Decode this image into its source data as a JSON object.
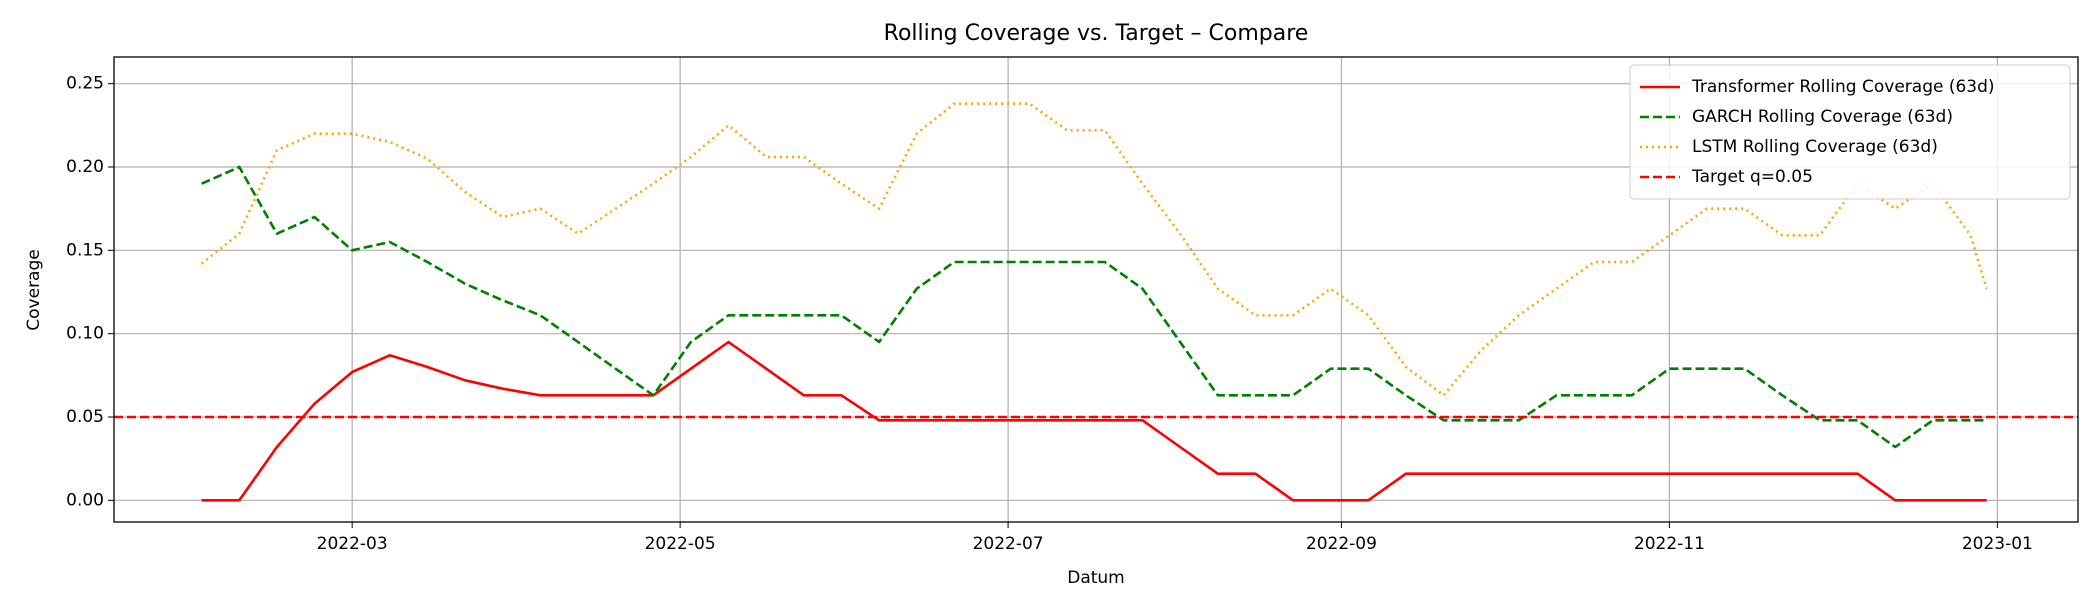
{
  "chart_data": {
    "type": "line",
    "title": "Rolling Coverage vs. Target – Compare",
    "x_label": "Datum",
    "y_label": "Coverage",
    "x": [
      32,
      39,
      46,
      53,
      60,
      67,
      74,
      81,
      88,
      95,
      102,
      109,
      116,
      123,
      130,
      137,
      144,
      151,
      158,
      165,
      172,
      179,
      186,
      193,
      200,
      207,
      214,
      221,
      228,
      235,
      242,
      249,
      256,
      263,
      270,
      277,
      284,
      291,
      298,
      305,
      312,
      319,
      326,
      333,
      340,
      347,
      354,
      361,
      364
    ],
    "xlim": [
      15.7,
      381
    ],
    "xticks": [
      {
        "value": 60,
        "label": "2022-03"
      },
      {
        "value": 121,
        "label": "2022-05"
      },
      {
        "value": 182,
        "label": "2022-07"
      },
      {
        "value": 244,
        "label": "2022-09"
      },
      {
        "value": 305,
        "label": "2022-11"
      },
      {
        "value": 366,
        "label": "2023-01"
      }
    ],
    "ylim": [
      -0.013,
      0.266
    ],
    "yticks": [
      {
        "value": 0,
        "label": "0.00"
      },
      {
        "value": 0.05,
        "label": "0.05"
      },
      {
        "value": 0.1,
        "label": "0.10"
      },
      {
        "value": 0.15,
        "label": "0.15"
      },
      {
        "value": 0.2,
        "label": "0.20"
      },
      {
        "value": 0.25,
        "label": "0.25"
      }
    ],
    "grid": true,
    "legend": "upper right",
    "series": [
      {
        "name": "Transformer Rolling Coverage (63d)",
        "color": "#ff0000",
        "style": "solid",
        "values": [
          0,
          0,
          0.032,
          0.058,
          0.077,
          0.087,
          0.08,
          0.072,
          0.067,
          0.063,
          0.063,
          0.063,
          0.063,
          0.079,
          0.095,
          0.079,
          0.063,
          0.063,
          0.048,
          0.048,
          0.048,
          0.048,
          0.048,
          0.048,
          0.048,
          0.048,
          0.032,
          0.016,
          0.016,
          0,
          0,
          0,
          0.016,
          0.016,
          0.016,
          0.016,
          0.016,
          0.016,
          0.016,
          0.016,
          0.016,
          0.016,
          0.016,
          0.016,
          0.016,
          0,
          0,
          0,
          0
        ]
      },
      {
        "name": "GARCH Rolling Coverage (63d)",
        "color": "#008000",
        "style": "dashed",
        "values": [
          0.19,
          0.2,
          0.16,
          0.17,
          0.15,
          0.155,
          0.143,
          0.13,
          0.12,
          0.111,
          0.095,
          0.079,
          0.063,
          0.095,
          0.111,
          0.111,
          0.111,
          0.111,
          0.095,
          0.127,
          0.143,
          0.143,
          0.143,
          0.143,
          0.143,
          0.127,
          0.095,
          0.063,
          0.063,
          0.063,
          0.079,
          0.079,
          0.063,
          0.048,
          0.048,
          0.048,
          0.063,
          0.063,
          0.063,
          0.079,
          0.079,
          0.079,
          0.063,
          0.048,
          0.048,
          0.032,
          0.048,
          0.048,
          0.048
        ]
      },
      {
        "name": "LSTM Rolling Coverage (63d)",
        "color": "#ffa500",
        "style": "dotted",
        "values": [
          0.142,
          0.16,
          0.21,
          0.22,
          0.22,
          0.215,
          0.205,
          0.185,
          0.17,
          0.175,
          0.16,
          0.175,
          0.19,
          0.206,
          0.225,
          0.206,
          0.206,
          0.19,
          0.175,
          0.22,
          0.238,
          0.238,
          0.238,
          0.222,
          0.222,
          0.19,
          0.16,
          0.127,
          0.111,
          0.111,
          0.127,
          0.111,
          0.08,
          0.063,
          0.09,
          0.111,
          0.127,
          0.143,
          0.143,
          0.159,
          0.175,
          0.175,
          0.159,
          0.159,
          0.19,
          0.175,
          0.19,
          0.159,
          0.127
        ]
      }
    ],
    "hlines": [
      {
        "name": "Target q=0.05",
        "value": 0.05,
        "color": "#ff0000",
        "style": "dashed"
      }
    ]
  }
}
